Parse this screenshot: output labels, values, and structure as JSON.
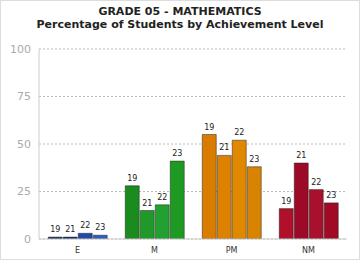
{
  "chart_data": {
    "type": "bar",
    "title": "GRADE 05 - MATHEMATICS",
    "subtitle": "Percentage of Students by Achievement Level",
    "categories": [
      "E",
      "M",
      "PM",
      "NM"
    ],
    "series": [
      {
        "name": "19",
        "colors": [
          "#0b2a6b",
          "#1a8c1e",
          "#d97c00",
          "#b0102a"
        ],
        "values": [
          1,
          28,
          55,
          16
        ]
      },
      {
        "name": "21",
        "colors": [
          "#12327e",
          "#1f9a28",
          "#dd8200",
          "#9c0a28"
        ],
        "values": [
          1,
          15,
          44,
          40
        ]
      },
      {
        "name": "22",
        "colors": [
          "#1f48a8",
          "#22a030",
          "#e08800",
          "#a8102c"
        ],
        "values": [
          3,
          18,
          52,
          26
        ]
      },
      {
        "name": "23",
        "colors": [
          "#2a5fbf",
          "#1e9a22",
          "#d98400",
          "#a00a25"
        ],
        "values": [
          2,
          41,
          38,
          19
        ]
      }
    ],
    "ylim": [
      0,
      100
    ],
    "yticks": [
      0,
      25,
      50,
      75,
      100
    ],
    "grid": true
  }
}
